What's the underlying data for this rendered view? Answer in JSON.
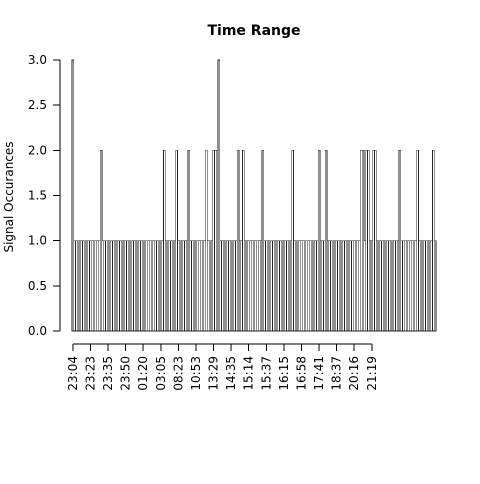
{
  "chart_data": {
    "type": "bar",
    "title": "Time Range",
    "xlabel": "",
    "ylabel": "Signal Occurances",
    "ylim": [
      0,
      3
    ],
    "y_ticks": [
      0.0,
      0.5,
      1.0,
      1.5,
      2.0,
      2.5,
      3.0
    ],
    "y_tick_labels": [
      "0.0",
      "0.5",
      "1.0",
      "1.5",
      "2.0",
      "2.5",
      "3.0"
    ],
    "x_tick_labels": [
      "23:04",
      "23:23",
      "23:35",
      "23:50",
      "01:20",
      "03:05",
      "08:23",
      "10:53",
      "13:29",
      "14:35",
      "15:14",
      "15:37",
      "16:15",
      "16:58",
      "17:41",
      "18:37",
      "20:16",
      "21:19"
    ],
    "x_tick_bar_index": [
      0,
      10,
      20,
      30,
      40,
      50,
      60,
      70,
      80,
      90,
      100,
      110,
      120,
      130,
      140,
      150,
      160,
      170
    ],
    "grid": false,
    "values": [
      3,
      1,
      1,
      1,
      1,
      1,
      1,
      1,
      1,
      1,
      1,
      1,
      1,
      1,
      1,
      1,
      2,
      1,
      1,
      1,
      1,
      1,
      1,
      1,
      1,
      1,
      1,
      1,
      1,
      1,
      1,
      1,
      1,
      1,
      1,
      1,
      1,
      1,
      1,
      1,
      1,
      1,
      1,
      1,
      1,
      1,
      1,
      1,
      1,
      1,
      1,
      1,
      2,
      1,
      1,
      1,
      1,
      1,
      1,
      2,
      1,
      1,
      1,
      1,
      1,
      1,
      2,
      1,
      1,
      1,
      1,
      1,
      1,
      1,
      1,
      1,
      2,
      1,
      1,
      1,
      2,
      2,
      2,
      3,
      1,
      1,
      1,
      1,
      1,
      1,
      1,
      1,
      1,
      1,
      2,
      1,
      1,
      2,
      1,
      1,
      1,
      1,
      1,
      1,
      1,
      1,
      1,
      1,
      2,
      1,
      1,
      1,
      1,
      1,
      1,
      1,
      1,
      1,
      1,
      1,
      1,
      1,
      1,
      1,
      1,
      2,
      1,
      1,
      1,
      1,
      1,
      1,
      1,
      1,
      1,
      1,
      1,
      1,
      1,
      1,
      2,
      1,
      1,
      1,
      2,
      1,
      1,
      1,
      1,
      1,
      1,
      1,
      1,
      1,
      1,
      1,
      1,
      1,
      1,
      1,
      1,
      1,
      1,
      1,
      2,
      2,
      1,
      2,
      2,
      1,
      1,
      2,
      2,
      1,
      1,
      1,
      1,
      1,
      1,
      1,
      1,
      1,
      1,
      1,
      1,
      1,
      2,
      1,
      1,
      1,
      1,
      1,
      1,
      1,
      1,
      1,
      2,
      1,
      1,
      1,
      1,
      1,
      1,
      1,
      1,
      2,
      1
    ]
  }
}
